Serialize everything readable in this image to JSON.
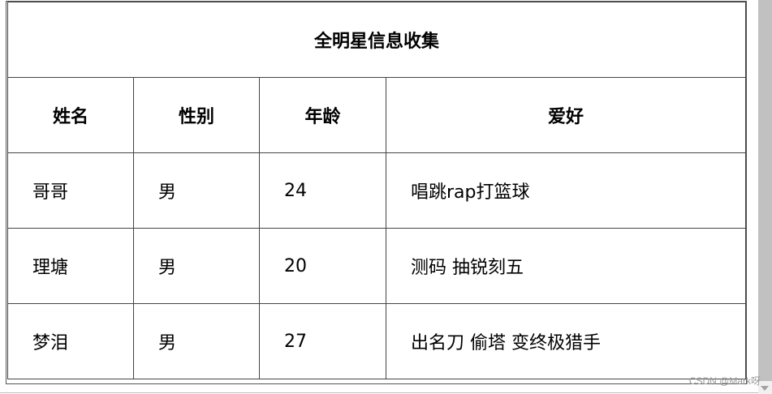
{
  "table": {
    "title": "全明星信息收集",
    "headers": [
      "姓名",
      "性别",
      "年龄",
      "爱好"
    ],
    "rows": [
      [
        "哥哥",
        "男",
        "24",
        "唱跳rap打篮球"
      ],
      [
        "理塘",
        "男",
        "20",
        "测码 抽锐刻五"
      ],
      [
        "梦泪",
        "男",
        "27",
        "出名刀 偷塔 变终极猎手"
      ]
    ]
  },
  "watermark": "CSDN @Mark呀"
}
